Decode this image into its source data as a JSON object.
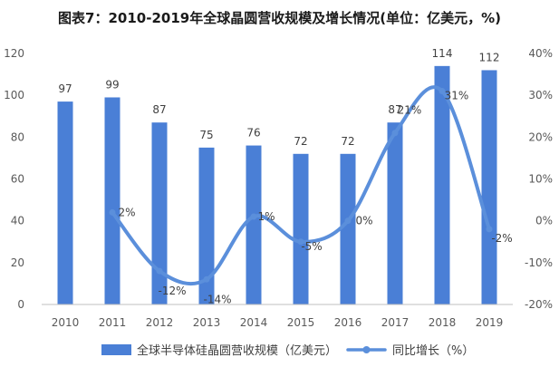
{
  "chart_data": {
    "type": "bar",
    "title": "图表7：2010-2019年全球晶圆营收规模及增长情况(单位：亿美元，%)",
    "categories": [
      "2010",
      "2011",
      "2012",
      "2013",
      "2014",
      "2015",
      "2016",
      "2017",
      "2018",
      "2019"
    ],
    "series": [
      {
        "name": "全球半导体硅晶圆营收规模（亿美元）",
        "type": "bar",
        "axis": "left",
        "color": "#4a7fd6",
        "values": [
          97,
          99,
          87,
          75,
          76,
          72,
          72,
          87,
          114,
          112
        ],
        "labels": [
          "97",
          "99",
          "87",
          "75",
          "76",
          "72",
          "72",
          "87",
          "114",
          "112"
        ]
      },
      {
        "name": "同比增长（%）",
        "type": "line",
        "axis": "right",
        "color": "#5b8fdb",
        "values": [
          null,
          2,
          -12,
          -14,
          1,
          -5,
          0,
          21,
          31,
          -2
        ],
        "labels": [
          "",
          "2%",
          "-12%",
          "-14%",
          "1%",
          "-5%",
          "0%",
          "21%",
          "31%",
          "-2%"
        ]
      }
    ],
    "y_left": {
      "min": 0,
      "max": 120,
      "step": 20,
      "ticks": [
        "0",
        "20",
        "40",
        "60",
        "80",
        "100",
        "120"
      ]
    },
    "y_right": {
      "min": -20,
      "max": 40,
      "step": 10,
      "ticks": [
        "-20%",
        "-10%",
        "0%",
        "10%",
        "20%",
        "30%",
        "40%"
      ]
    },
    "grid": false,
    "legend_position": "bottom"
  }
}
